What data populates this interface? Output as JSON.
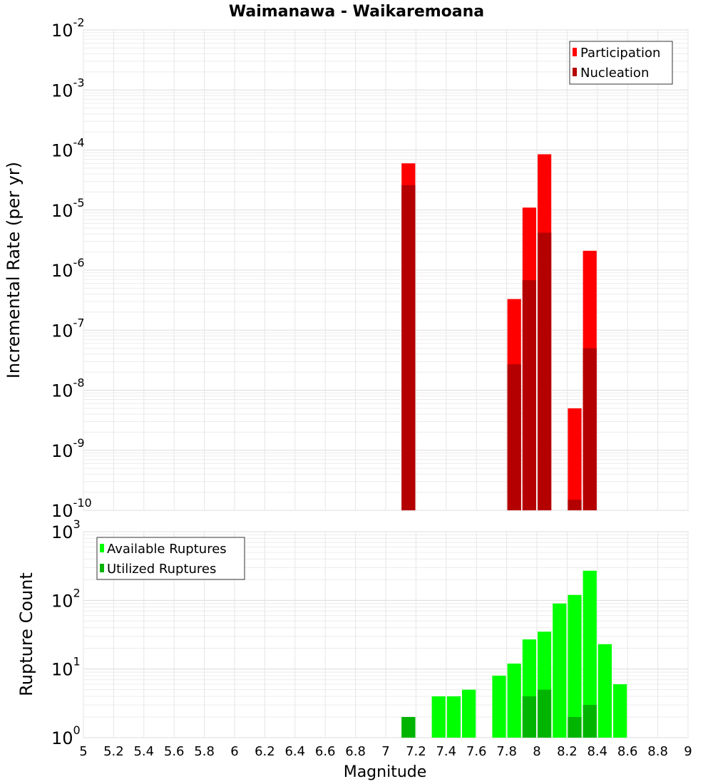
{
  "title": "Waimanawa - Waikaremoana",
  "xlabel": "Magnitude",
  "x_tick_labels": [
    "5",
    "5.2",
    "5.4",
    "5.6",
    "5.8",
    "6",
    "6.2",
    "6.4",
    "6.6",
    "6.8",
    "7",
    "7.2",
    "7.4",
    "7.6",
    "7.8",
    "8",
    "8.2",
    "8.4",
    "8.6",
    "8.8",
    "9"
  ],
  "colors": {
    "participation": "#ff0000",
    "nucleation": "#b40000",
    "available": "#00ff00",
    "utilized": "#00b400"
  },
  "chart_data": [
    {
      "type": "bar",
      "ylabel": "Incremental Rate (per yr)",
      "yscale": "log",
      "ylim_exp": [
        -10,
        -2
      ],
      "y_tick_labels": [
        {
          "base": "10",
          "exp": "-10"
        },
        {
          "base": "10",
          "exp": "-9"
        },
        {
          "base": "10",
          "exp": "-8"
        },
        {
          "base": "10",
          "exp": "-7"
        },
        {
          "base": "10",
          "exp": "-6"
        },
        {
          "base": "10",
          "exp": "-5"
        },
        {
          "base": "10",
          "exp": "-4"
        },
        {
          "base": "10",
          "exp": "-3"
        },
        {
          "base": "10",
          "exp": "-2"
        }
      ],
      "xlim": [
        5,
        9
      ],
      "bar_width": 0.1,
      "legend_position": "top-right",
      "series": [
        {
          "name": "Participation",
          "color": "#ff0000",
          "points": [
            [
              7.15,
              6e-05
            ],
            [
              7.85,
              3.3e-07
            ],
            [
              7.95,
              1.1e-05
            ],
            [
              8.05,
              8.5e-05
            ],
            [
              8.25,
              5e-09
            ],
            [
              8.35,
              2.1e-06
            ]
          ]
        },
        {
          "name": "Nucleation",
          "color": "#b40000",
          "points": [
            [
              7.15,
              2.6e-05
            ],
            [
              7.85,
              2.7e-08
            ],
            [
              7.95,
              6.8e-07
            ],
            [
              8.05,
              4.2e-06
            ],
            [
              8.25,
              1.5e-10
            ],
            [
              8.35,
              5e-08
            ]
          ]
        }
      ]
    },
    {
      "type": "bar",
      "ylabel": "Rupture Count",
      "yscale": "log",
      "ylim_exp": [
        0,
        3
      ],
      "y_tick_labels": [
        {
          "base": "10",
          "exp": "0"
        },
        {
          "base": "10",
          "exp": "1"
        },
        {
          "base": "10",
          "exp": "2"
        },
        {
          "base": "10",
          "exp": "3"
        }
      ],
      "xlim": [
        5,
        9
      ],
      "bar_width": 0.1,
      "legend_position": "top-left",
      "series": [
        {
          "name": "Available Ruptures",
          "color": "#00ff00",
          "points": [
            [
              6.75,
              1
            ],
            [
              7.15,
              2
            ],
            [
              7.25,
              1
            ],
            [
              7.35,
              4
            ],
            [
              7.45,
              4
            ],
            [
              7.55,
              5
            ],
            [
              7.65,
              1
            ],
            [
              7.75,
              8
            ],
            [
              7.85,
              12
            ],
            [
              7.95,
              27
            ],
            [
              8.05,
              35
            ],
            [
              8.15,
              90
            ],
            [
              8.25,
              120
            ],
            [
              8.35,
              270
            ],
            [
              8.45,
              23
            ],
            [
              8.55,
              6
            ]
          ]
        },
        {
          "name": "Utilized Ruptures",
          "color": "#00b400",
          "points": [
            [
              7.15,
              2
            ],
            [
              7.85,
              1
            ],
            [
              7.95,
              4
            ],
            [
              8.05,
              5
            ],
            [
              8.25,
              2
            ],
            [
              8.35,
              3
            ]
          ]
        }
      ]
    }
  ]
}
